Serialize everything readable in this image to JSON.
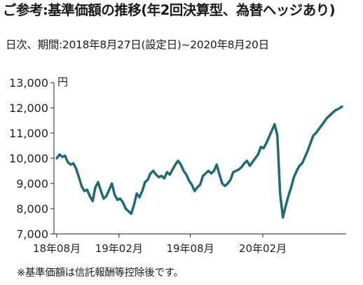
{
  "header": {
    "title": "ご参考:基準価額の推移(年2回決算型、為替ヘッジあり)",
    "subtitle": "日次、期間:2018年8月27日(設定日)~2020年8月20日"
  },
  "footnote": "※基準価額は信託報酬等控除後です。",
  "chart_data": {
    "type": "line",
    "title": "",
    "unit_label": "円",
    "xlabel": "",
    "ylabel": "",
    "ylim": [
      7000,
      13000
    ],
    "yticks": [
      7000,
      8000,
      9000,
      10000,
      11000,
      12000,
      13000
    ],
    "ytick_labels": [
      "7,000",
      "8,000",
      "9,000",
      "10,000",
      "11,000",
      "12,000",
      "13,000"
    ],
    "xlim": [
      "2018-08-27",
      "2020-08-20"
    ],
    "xticks": [
      {
        "date": "2018-08-27",
        "label": "18年08月"
      },
      {
        "date": "2019-02-01",
        "label": "19年02月"
      },
      {
        "date": "2019-08-01",
        "label": "19年08月"
      },
      {
        "date": "2020-02-01",
        "label": "20年02月"
      }
    ],
    "grid": false,
    "line_color": "#1e6b73",
    "series": [
      {
        "name": "",
        "points": [
          [
            "2018-08-27",
            10000
          ],
          [
            "2018-09-03",
            10150
          ],
          [
            "2018-09-10",
            10050
          ],
          [
            "2018-09-17",
            10100
          ],
          [
            "2018-09-24",
            9850
          ],
          [
            "2018-10-01",
            9750
          ],
          [
            "2018-10-08",
            9800
          ],
          [
            "2018-10-15",
            9600
          ],
          [
            "2018-10-22",
            9250
          ],
          [
            "2018-10-29",
            8900
          ],
          [
            "2018-11-05",
            8700
          ],
          [
            "2018-11-12",
            8750
          ],
          [
            "2018-11-19",
            8500
          ],
          [
            "2018-11-26",
            8300
          ],
          [
            "2018-12-03",
            8850
          ],
          [
            "2018-12-10",
            9050
          ],
          [
            "2018-12-17",
            8700
          ],
          [
            "2018-12-24",
            8400
          ],
          [
            "2018-12-31",
            8500
          ],
          [
            "2019-01-07",
            8750
          ],
          [
            "2019-01-14",
            9000
          ],
          [
            "2019-01-21",
            8550
          ],
          [
            "2019-01-28",
            8350
          ],
          [
            "2019-02-04",
            8400
          ],
          [
            "2019-02-11",
            8250
          ],
          [
            "2019-02-18",
            8000
          ],
          [
            "2019-02-25",
            7900
          ],
          [
            "2019-03-04",
            7800
          ],
          [
            "2019-03-11",
            8150
          ],
          [
            "2019-03-18",
            8600
          ],
          [
            "2019-03-25",
            8450
          ],
          [
            "2019-04-01",
            8700
          ],
          [
            "2019-04-08",
            9050
          ],
          [
            "2019-04-15",
            9150
          ],
          [
            "2019-04-22",
            9400
          ],
          [
            "2019-04-29",
            9500
          ],
          [
            "2019-05-06",
            9350
          ],
          [
            "2019-05-13",
            9250
          ],
          [
            "2019-05-20",
            9300
          ],
          [
            "2019-05-27",
            9200
          ],
          [
            "2019-06-03",
            9450
          ],
          [
            "2019-06-10",
            9350
          ],
          [
            "2019-06-17",
            9550
          ],
          [
            "2019-06-24",
            9750
          ],
          [
            "2019-07-01",
            9900
          ],
          [
            "2019-07-08",
            9750
          ],
          [
            "2019-07-15",
            9500
          ],
          [
            "2019-07-22",
            9350
          ],
          [
            "2019-07-29",
            9100
          ],
          [
            "2019-08-05",
            8950
          ],
          [
            "2019-08-12",
            8700
          ],
          [
            "2019-08-19",
            8850
          ],
          [
            "2019-08-26",
            8950
          ],
          [
            "2019-09-02",
            9300
          ],
          [
            "2019-09-09",
            9400
          ],
          [
            "2019-09-16",
            9500
          ],
          [
            "2019-09-23",
            9400
          ],
          [
            "2019-09-30",
            9500
          ],
          [
            "2019-10-07",
            9750
          ],
          [
            "2019-10-14",
            9350
          ],
          [
            "2019-10-21",
            9000
          ],
          [
            "2019-10-28",
            8900
          ],
          [
            "2019-11-04",
            9000
          ],
          [
            "2019-11-11",
            9150
          ],
          [
            "2019-11-18",
            9450
          ],
          [
            "2019-11-25",
            9500
          ],
          [
            "2019-12-02",
            9550
          ],
          [
            "2019-12-09",
            9650
          ],
          [
            "2019-12-16",
            9800
          ],
          [
            "2019-12-23",
            9900
          ],
          [
            "2019-12-30",
            9700
          ],
          [
            "2020-01-06",
            9850
          ],
          [
            "2020-01-13",
            10000
          ],
          [
            "2020-01-20",
            10150
          ],
          [
            "2020-01-27",
            10450
          ],
          [
            "2020-02-03",
            10400
          ],
          [
            "2020-02-10",
            10600
          ],
          [
            "2020-02-17",
            10850
          ],
          [
            "2020-02-24",
            11100
          ],
          [
            "2020-03-02",
            11350
          ],
          [
            "2020-03-09",
            10900
          ],
          [
            "2020-03-16",
            8600
          ],
          [
            "2020-03-23",
            7650
          ],
          [
            "2020-03-30",
            8100
          ],
          [
            "2020-04-06",
            8500
          ],
          [
            "2020-04-13",
            8850
          ],
          [
            "2020-04-20",
            9250
          ],
          [
            "2020-04-27",
            9500
          ],
          [
            "2020-05-04",
            9700
          ],
          [
            "2020-05-11",
            9800
          ],
          [
            "2020-05-18",
            10050
          ],
          [
            "2020-05-25",
            10300
          ],
          [
            "2020-06-01",
            10600
          ],
          [
            "2020-06-08",
            10900
          ],
          [
            "2020-06-15",
            11000
          ],
          [
            "2020-06-22",
            11150
          ],
          [
            "2020-06-29",
            11300
          ],
          [
            "2020-07-06",
            11450
          ],
          [
            "2020-07-13",
            11600
          ],
          [
            "2020-07-20",
            11700
          ],
          [
            "2020-07-27",
            11800
          ],
          [
            "2020-08-03",
            11900
          ],
          [
            "2020-08-10",
            11950
          ],
          [
            "2020-08-20",
            12050
          ]
        ]
      }
    ]
  }
}
